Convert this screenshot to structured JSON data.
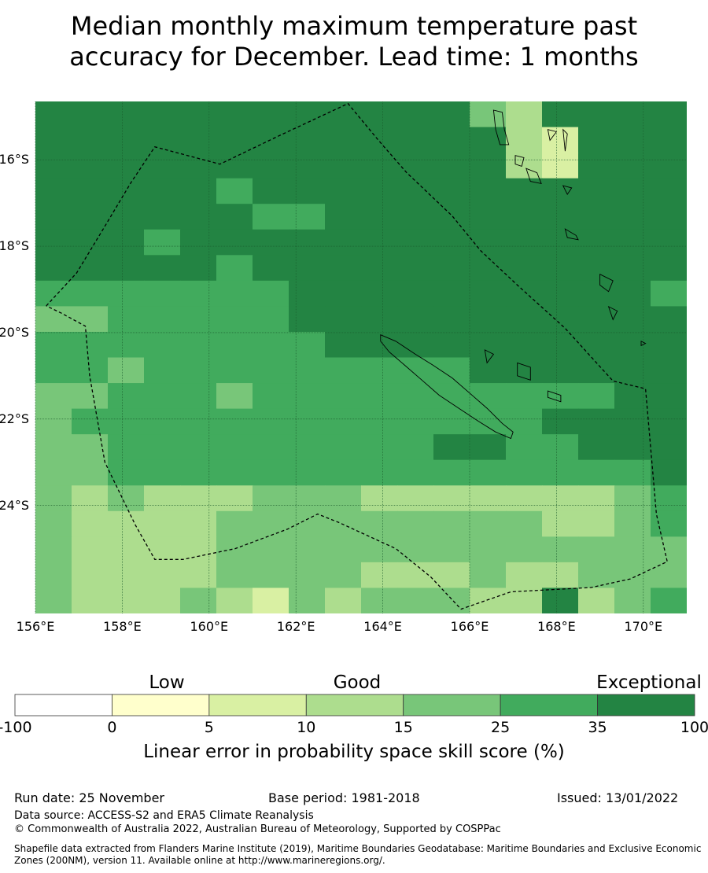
{
  "title_line1": "Median monthly maximum temperature past",
  "title_line2": "accuracy for December. Lead time: 1 months",
  "map": {
    "lon_range": [
      156,
      171
    ],
    "lat_range": [
      -26.5,
      -14.65
    ],
    "lat_ticks": [
      {
        "value": -16,
        "label": "16°S"
      },
      {
        "value": -18,
        "label": "18°S"
      },
      {
        "value": -20,
        "label": "20°S"
      },
      {
        "value": -22,
        "label": "22°S"
      },
      {
        "value": -24,
        "label": "24°S"
      }
    ],
    "lon_ticks": [
      {
        "value": 156,
        "label": "156°E"
      },
      {
        "value": 158,
        "label": "158°E"
      },
      {
        "value": 160,
        "label": "160°E"
      },
      {
        "value": 162,
        "label": "162°E"
      },
      {
        "value": 164,
        "label": "164°E"
      },
      {
        "value": 166,
        "label": "166°E"
      },
      {
        "value": 168,
        "label": "168°E"
      },
      {
        "value": 170,
        "label": "170°E"
      }
    ],
    "grid_resolution_deg": 0.833,
    "grid_rows_north_to_south": [
      "AAAAAAAAAAAAEFAAAA",
      "AAAAAAAAAAAAAFGAAA",
      "AAAAAAAAAAAAAFHAAA",
      "AAAAABAAAAAAAAAAAA",
      "AAAAAABBAAAAAAAAAA",
      "AAABAAAAAAAAAAAAAA",
      "AAAAABAAAAAAAAAAAA",
      "BBBBBBBAAAAAAAAAAB",
      "DDBBBBBAAAAAAAAAAA",
      "BBBBBBBBAAAAAAAAAA",
      "BBEBBBBBBBBBAAAAAA",
      "EEBBBEBBBBBBBBBBAA",
      "EBBBBBBBBBBBBBAAAA",
      "EEBBBBBBBBBAABBAAA",
      "EEBBBBBBBBBBBBBBBA",
      "EFEFFFEEEFFFFFFFEB",
      "EFFFFEEEEEEEEEFFEB",
      "EFFFFEEEEEEEEEEEEE",
      "EFFFFEEEEFFFEFFEEE",
      "EFFFEFGEFEEEFFAFEB"
    ],
    "category_colors": {
      "A": "#238443",
      "B": "#41ab5d",
      "D": "#78c679",
      "E": "#78c679",
      "F": "#addd8e",
      "G": "#d9f0a3",
      "H": "#d9f0a3"
    },
    "eez_boundary_lonlat": [
      [
        156.25,
        -19.38
      ],
      [
        156.95,
        -18.62
      ],
      [
        157.55,
        -17.62
      ],
      [
        158.2,
        -16.53
      ],
      [
        158.75,
        -15.7
      ],
      [
        160.25,
        -16.1
      ],
      [
        161.6,
        -15.45
      ],
      [
        163.2,
        -14.7
      ],
      [
        163.9,
        -15.55
      ],
      [
        164.55,
        -16.3
      ],
      [
        165.6,
        -17.3
      ],
      [
        166.25,
        -18.1
      ],
      [
        167.1,
        -18.9
      ],
      [
        168.2,
        -19.9
      ],
      [
        169.3,
        -21.12
      ],
      [
        170.05,
        -21.3
      ],
      [
        170.3,
        -24.2
      ],
      [
        170.55,
        -25.3
      ],
      [
        169.7,
        -25.7
      ],
      [
        168.8,
        -25.9
      ],
      [
        166.95,
        -26.0
      ],
      [
        165.8,
        -26.4
      ],
      [
        165.1,
        -25.65
      ],
      [
        164.3,
        -25.0
      ],
      [
        163.0,
        -24.4
      ],
      [
        162.5,
        -24.2
      ],
      [
        161.8,
        -24.55
      ],
      [
        160.6,
        -25.0
      ],
      [
        159.4,
        -25.25
      ],
      [
        158.75,
        -25.25
      ],
      [
        158.3,
        -24.45
      ],
      [
        157.6,
        -23.0
      ],
      [
        157.25,
        -21.0
      ],
      [
        157.15,
        -19.85
      ],
      [
        156.6,
        -19.55
      ],
      [
        156.25,
        -19.38
      ]
    ],
    "grande_terre_lonlat": [
      [
        163.95,
        -20.05
      ],
      [
        164.3,
        -20.2
      ],
      [
        164.75,
        -20.5
      ],
      [
        165.15,
        -20.75
      ],
      [
        165.6,
        -21.05
      ],
      [
        166.0,
        -21.4
      ],
      [
        166.4,
        -21.75
      ],
      [
        166.75,
        -22.1
      ],
      [
        167.0,
        -22.3
      ],
      [
        166.95,
        -22.45
      ],
      [
        166.6,
        -22.3
      ],
      [
        166.2,
        -22.05
      ],
      [
        165.75,
        -21.75
      ],
      [
        165.3,
        -21.45
      ],
      [
        164.9,
        -21.1
      ],
      [
        164.5,
        -20.75
      ],
      [
        164.15,
        -20.45
      ],
      [
        163.95,
        -20.2
      ],
      [
        163.95,
        -20.05
      ]
    ],
    "small_islands_lonlat": [
      [
        [
          166.55,
          -14.85
        ],
        [
          166.75,
          -14.9
        ],
        [
          166.8,
          -15.3
        ],
        [
          166.9,
          -15.65
        ],
        [
          166.7,
          -15.65
        ],
        [
          166.6,
          -15.3
        ],
        [
          166.55,
          -14.85
        ]
      ],
      [
        [
          167.05,
          -15.9
        ],
        [
          167.25,
          -15.95
        ],
        [
          167.2,
          -16.15
        ],
        [
          167.05,
          -16.1
        ],
        [
          167.05,
          -15.9
        ]
      ],
      [
        [
          167.3,
          -16.2
        ],
        [
          167.55,
          -16.3
        ],
        [
          167.65,
          -16.55
        ],
        [
          167.4,
          -16.5
        ],
        [
          167.3,
          -16.2
        ]
      ],
      [
        [
          168.15,
          -15.3
        ],
        [
          168.25,
          -15.4
        ],
        [
          168.2,
          -15.8
        ],
        [
          168.15,
          -15.3
        ]
      ],
      [
        [
          167.8,
          -15.3
        ],
        [
          168.0,
          -15.35
        ],
        [
          167.85,
          -15.55
        ],
        [
          167.8,
          -15.3
        ]
      ],
      [
        [
          168.15,
          -16.6
        ],
        [
          168.35,
          -16.65
        ],
        [
          168.25,
          -16.8
        ],
        [
          168.15,
          -16.6
        ]
      ],
      [
        [
          168.2,
          -17.6
        ],
        [
          168.45,
          -17.75
        ],
        [
          168.5,
          -17.85
        ],
        [
          168.25,
          -17.8
        ],
        [
          168.2,
          -17.6
        ]
      ],
      [
        [
          169.0,
          -18.65
        ],
        [
          169.3,
          -18.8
        ],
        [
          169.2,
          -19.05
        ],
        [
          169.0,
          -18.9
        ],
        [
          169.0,
          -18.65
        ]
      ],
      [
        [
          169.2,
          -19.4
        ],
        [
          169.4,
          -19.5
        ],
        [
          169.3,
          -19.7
        ],
        [
          169.2,
          -19.4
        ]
      ],
      [
        [
          167.1,
          -20.7
        ],
        [
          167.4,
          -20.8
        ],
        [
          167.4,
          -21.1
        ],
        [
          167.1,
          -21.0
        ],
        [
          167.1,
          -20.7
        ]
      ],
      [
        [
          167.8,
          -21.35
        ],
        [
          168.1,
          -21.45
        ],
        [
          168.1,
          -21.6
        ],
        [
          167.8,
          -21.5
        ],
        [
          167.8,
          -21.35
        ]
      ],
      [
        [
          166.35,
          -20.4
        ],
        [
          166.55,
          -20.5
        ],
        [
          166.4,
          -20.7
        ],
        [
          166.35,
          -20.4
        ]
      ],
      [
        [
          169.95,
          -20.2
        ],
        [
          170.05,
          -20.25
        ],
        [
          169.95,
          -20.3
        ],
        [
          169.95,
          -20.2
        ]
      ]
    ]
  },
  "colorbar": {
    "categories": [
      "Low",
      "Good",
      "Exceptional"
    ],
    "boundaries": [
      "-100",
      "0",
      "5",
      "10",
      "15",
      "25",
      "35",
      "100"
    ],
    "colors": [
      "#ffffff",
      "#ffffcc",
      "#d9f0a3",
      "#addd8e",
      "#78c679",
      "#41ab5d",
      "#238443"
    ],
    "title": "Linear error in probability space skill score (%)"
  },
  "footer": {
    "run_date": "Run date: 25 November",
    "base_period": "Base period: 1981-2018",
    "issued": "Issued: 13/01/2022",
    "data_source": "Data source: ACCESS-S2 and ERA5 Climate Reanalysis",
    "copyright": "© Commonwealth of Australia 2022, Australian Bureau of Meteorology, Supported by COSPPac",
    "shapefile": "Shapefile data extracted from Flanders Marine Institute (2019), Maritime Boundaries Geodatabase: Maritime Boundaries and Exclusive Economic Zones (200NM), version 11. Available online at http://www.marineregions.org/."
  }
}
